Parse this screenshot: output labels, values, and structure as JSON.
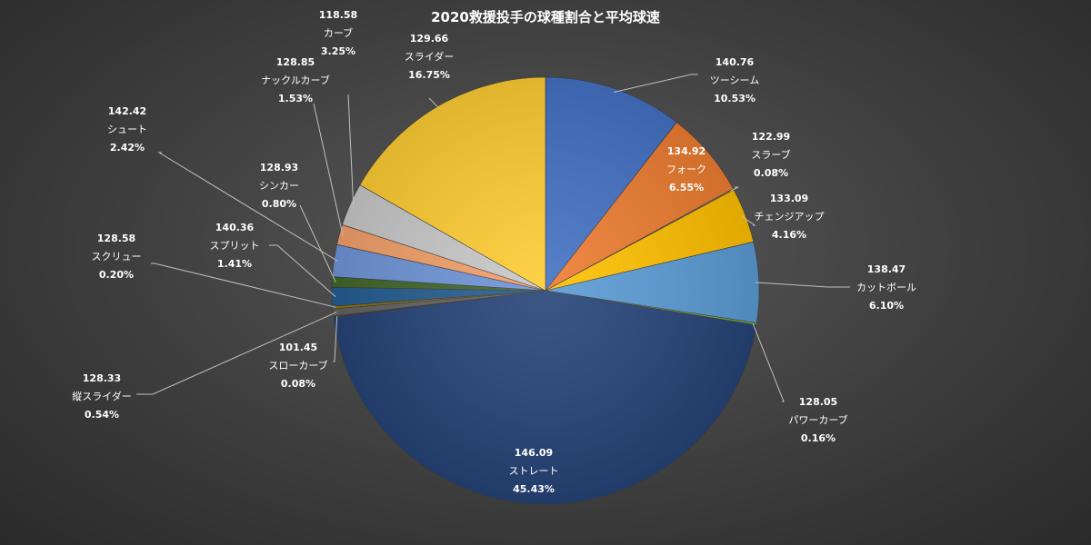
{
  "chart_data": {
    "type": "pie",
    "title": "2020救援投手の球種割合と平均球速",
    "slices": [
      {
        "name": "ツーシーム",
        "speed": "140.76",
        "pct": "10.53%",
        "value": 10.53,
        "color": "#4472c4"
      },
      {
        "name": "フォーク",
        "speed": "134.92",
        "pct": "6.55%",
        "value": 6.55,
        "color": "#ed7d31"
      },
      {
        "name": "スラーブ",
        "speed": "122.99",
        "pct": "0.08%",
        "value": 0.08,
        "color": "#a5a5a5"
      },
      {
        "name": "チェンジアップ",
        "speed": "133.09",
        "pct": "4.16%",
        "value": 4.16,
        "color": "#ffc000"
      },
      {
        "name": "カットボール",
        "speed": "138.47",
        "pct": "6.10%",
        "value": 6.1,
        "color": "#5b9bd5"
      },
      {
        "name": "パワーカーブ",
        "speed": "128.05",
        "pct": "0.16%",
        "value": 0.16,
        "color": "#70ad47"
      },
      {
        "name": "ストレート",
        "speed": "146.09",
        "pct": "45.43%",
        "value": 45.43,
        "color": "#264478"
      },
      {
        "name": "スローカーブ",
        "speed": "101.45",
        "pct": "0.08%",
        "value": 0.08,
        "color": "#9e480e"
      },
      {
        "name": "縦スライダー",
        "speed": "128.33",
        "pct": "0.54%",
        "value": 0.54,
        "color": "#636363"
      },
      {
        "name": "スクリュー",
        "speed": "128.58",
        "pct": "0.20%",
        "value": 0.2,
        "color": "#997300"
      },
      {
        "name": "スプリット",
        "speed": "140.36",
        "pct": "1.41%",
        "value": 1.41,
        "color": "#255e91"
      },
      {
        "name": "シンカー",
        "speed": "128.93",
        "pct": "0.80%",
        "value": 0.8,
        "color": "#43682b"
      },
      {
        "name": "シュート",
        "speed": "142.42",
        "pct": "2.42%",
        "value": 2.42,
        "color": "#2e6b2a"
      },
      {
        "name": "ナックルカーブ",
        "speed": "128.85",
        "pct": "1.53%",
        "value": 1.53,
        "color": "#698ed0"
      },
      {
        "name": "カーブ",
        "speed": "118.58",
        "pct": "3.25%",
        "value": 3.25,
        "color": "#f1975a"
      },
      {
        "name": "スライダー",
        "speed": "129.66",
        "pct": "16.75%",
        "value": 16.75,
        "color": "#b7b7b7"
      }
    ],
    "slider_color": "#ffcd33"
  }
}
